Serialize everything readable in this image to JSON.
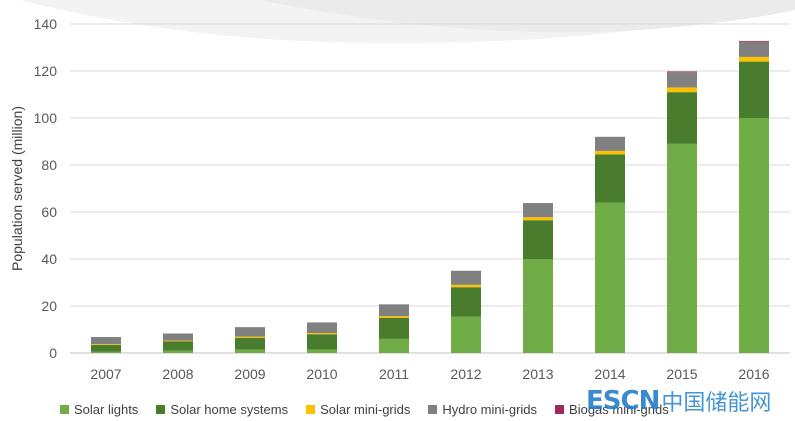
{
  "chart_data": {
    "type": "bar",
    "stacked": true,
    "title": "",
    "xlabel": "",
    "ylabel": "Population served (million)",
    "ylim": [
      0,
      140
    ],
    "yticks": [
      0,
      20,
      40,
      60,
      80,
      100,
      120,
      140
    ],
    "grid": true,
    "legend_position": "bottom",
    "categories": [
      "2007",
      "2008",
      "2009",
      "2010",
      "2011",
      "2012",
      "2013",
      "2014",
      "2015",
      "2016"
    ],
    "series": [
      {
        "name": "Solar lights",
        "color": "#70ad47",
        "values": [
          0.5,
          1,
          1.5,
          1.5,
          6,
          15.5,
          40,
          64,
          89,
          100
        ]
      },
      {
        "name": "Solar home systems",
        "color": "#4a7c2e",
        "values": [
          3,
          4,
          5,
          6.5,
          9,
          12.5,
          16.5,
          20.5,
          22,
          24
        ]
      },
      {
        "name": "Solar mini-grids",
        "color": "#ffc000",
        "values": [
          0.3,
          0.3,
          0.5,
          0.5,
          0.7,
          1,
          1.3,
          1.5,
          2,
          2
        ]
      },
      {
        "name": "Hydro mini-grids",
        "color": "#808080",
        "values": [
          3,
          3,
          4,
          4.5,
          5,
          6,
          6,
          6,
          6.5,
          6.5
        ]
      },
      {
        "name": "Biogas mini-grids",
        "color": "#9e2a5a",
        "values": [
          0,
          0,
          0,
          0,
          0,
          0,
          0,
          0,
          0.3,
          0.3
        ]
      }
    ]
  },
  "watermark": {
    "logo": "ESCN",
    "text": "中国储能网"
  }
}
